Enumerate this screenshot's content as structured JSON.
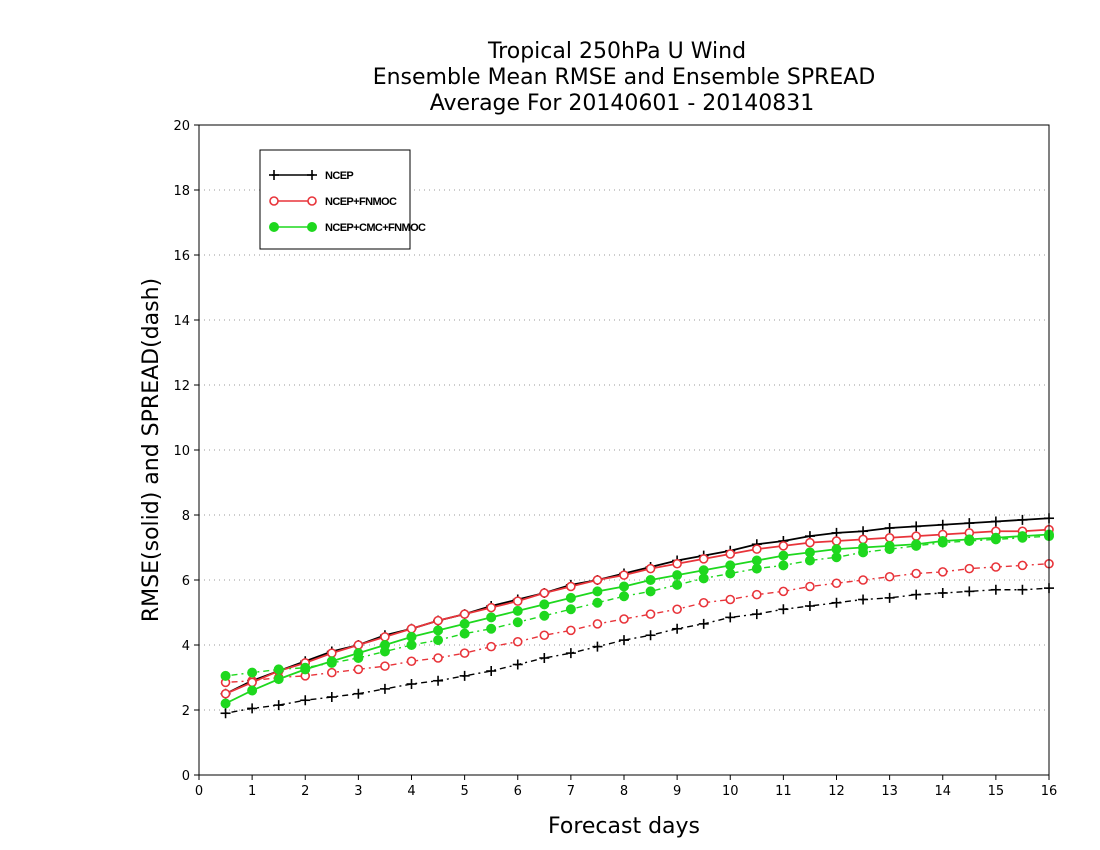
{
  "chart_data": {
    "type": "line",
    "title": "Tropical 250hPa U Wind",
    "subtitle": "Ensemble Mean RMSE and Ensemble SPREAD",
    "subtitle2": "Average For 20140601 - 20140831",
    "xlabel": "Forecast days",
    "ylabel": "RMSE(solid) and SPREAD(dash)",
    "xlim": [
      0,
      16
    ],
    "ylim": [
      0,
      20
    ],
    "x_ticks": [
      0,
      1,
      2,
      3,
      4,
      5,
      6,
      7,
      8,
      9,
      10,
      11,
      12,
      13,
      14,
      15,
      16
    ],
    "y_ticks": [
      0,
      2,
      4,
      6,
      8,
      10,
      12,
      14,
      16,
      18,
      20
    ],
    "grid": "horizontal dotted",
    "legend_position": "top-left",
    "x": [
      0.5,
      1,
      1.5,
      2,
      2.5,
      3,
      3.5,
      4,
      4.5,
      5,
      5.5,
      6,
      6.5,
      7,
      7.5,
      8,
      8.5,
      9,
      9.5,
      10,
      10.5,
      11,
      11.5,
      12,
      12.5,
      13,
      13.5,
      14,
      14.5,
      15,
      15.5,
      16
    ],
    "series": [
      {
        "name": "NCEP",
        "color": "#000000",
        "marker": "plus",
        "rmse": [
          2.5,
          2.9,
          3.2,
          3.5,
          3.8,
          4.0,
          4.3,
          4.5,
          4.75,
          4.95,
          5.2,
          5.4,
          5.6,
          5.85,
          6.0,
          6.2,
          6.4,
          6.6,
          6.75,
          6.9,
          7.1,
          7.2,
          7.35,
          7.45,
          7.5,
          7.6,
          7.65,
          7.7,
          7.75,
          7.8,
          7.85,
          7.9
        ],
        "spread": [
          1.9,
          2.05,
          2.15,
          2.3,
          2.4,
          2.5,
          2.65,
          2.8,
          2.9,
          3.05,
          3.2,
          3.4,
          3.6,
          3.75,
          3.95,
          4.15,
          4.3,
          4.5,
          4.65,
          4.85,
          4.95,
          5.1,
          5.2,
          5.3,
          5.4,
          5.45,
          5.55,
          5.6,
          5.65,
          5.7,
          5.7,
          5.75
        ]
      },
      {
        "name": "NCEP+FNMOC",
        "color": "#e8343a",
        "marker": "open-circle",
        "rmse": [
          2.5,
          2.85,
          3.2,
          3.45,
          3.75,
          4.0,
          4.25,
          4.5,
          4.75,
          4.95,
          5.15,
          5.35,
          5.6,
          5.8,
          6.0,
          6.15,
          6.35,
          6.5,
          6.65,
          6.8,
          6.95,
          7.05,
          7.15,
          7.2,
          7.25,
          7.3,
          7.35,
          7.4,
          7.45,
          7.5,
          7.5,
          7.55
        ],
        "spread": [
          2.85,
          2.9,
          3.0,
          3.05,
          3.15,
          3.25,
          3.35,
          3.5,
          3.6,
          3.75,
          3.95,
          4.1,
          4.3,
          4.45,
          4.65,
          4.8,
          4.95,
          5.1,
          5.3,
          5.4,
          5.55,
          5.65,
          5.8,
          5.9,
          6.0,
          6.1,
          6.2,
          6.25,
          6.35,
          6.4,
          6.45,
          6.5
        ]
      },
      {
        "name": "NCEP+CMC+FNMOC",
        "color": "#1ed81e",
        "marker": "filled-circle",
        "rmse": [
          2.2,
          2.6,
          2.95,
          3.25,
          3.5,
          3.75,
          4.0,
          4.25,
          4.45,
          4.65,
          4.85,
          5.05,
          5.25,
          5.45,
          5.65,
          5.8,
          6.0,
          6.15,
          6.3,
          6.45,
          6.6,
          6.75,
          6.85,
          6.95,
          7.0,
          7.05,
          7.1,
          7.2,
          7.25,
          7.3,
          7.35,
          7.4
        ],
        "spread": [
          3.05,
          3.15,
          3.25,
          3.3,
          3.45,
          3.6,
          3.8,
          4.0,
          4.15,
          4.35,
          4.5,
          4.7,
          4.9,
          5.1,
          5.3,
          5.5,
          5.65,
          5.85,
          6.05,
          6.2,
          6.35,
          6.45,
          6.6,
          6.7,
          6.85,
          6.95,
          7.05,
          7.15,
          7.2,
          7.25,
          7.3,
          7.35
        ]
      }
    ]
  }
}
